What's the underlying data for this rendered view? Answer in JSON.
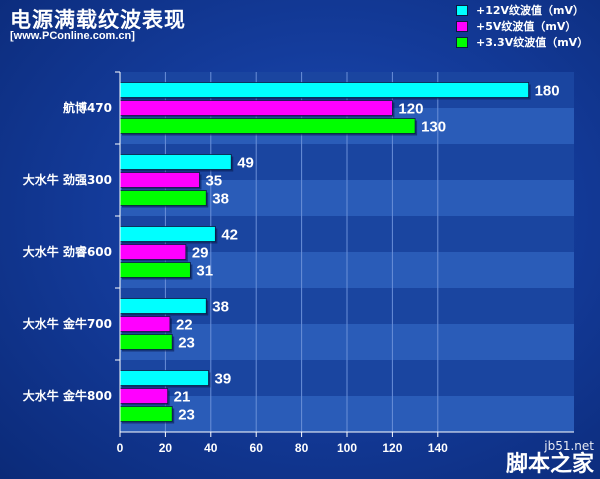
{
  "header": {
    "title": "电源满载纹波表现",
    "source": "[www.PConline.com.cn]"
  },
  "watermark": {
    "site": "jb51.net",
    "name": "脚本之家"
  },
  "chart_data": {
    "type": "bar",
    "orientation": "horizontal",
    "title": "电源满载纹波表现",
    "categories": [
      "航博470",
      "大水牛 劲强300",
      "大水牛 劲睿600",
      "大水牛 金牛700",
      "大水牛 金牛800"
    ],
    "series": [
      {
        "name": "+12V纹波值（mV）",
        "color": "#00ffff",
        "values": [
          180,
          49,
          42,
          38,
          39
        ]
      },
      {
        "name": "+5V纹波值（mV）",
        "color": "#ff00ff",
        "values": [
          120,
          35,
          29,
          22,
          21
        ]
      },
      {
        "name": "+3.3V纹波值（mV）",
        "color": "#00ff00",
        "values": [
          130,
          38,
          31,
          23,
          23
        ]
      }
    ],
    "xlim": [
      0,
      200
    ],
    "xticks": [
      0,
      20,
      40,
      60,
      80,
      100,
      120,
      140
    ],
    "grid": true,
    "legend_position": "top-right"
  }
}
